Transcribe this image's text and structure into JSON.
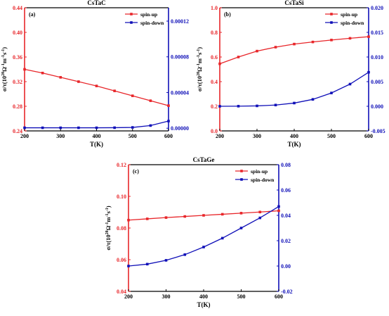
{
  "colors": {
    "spin_up": "#e8262a",
    "spin_down": "#1010b8",
    "frame": "#000000"
  },
  "chart_data": [
    {
      "type": "line",
      "title": "CsTaC",
      "panel_label": "(a)",
      "xlabel": "T(K)",
      "ylabel_main": "σ/τ(10",
      "ylabel_exp": "20",
      "ylabel_rest": "Ω",
      "ylabel_unit": "m",
      "ylabel_unit2": "s",
      "ylabel_sup": "-1",
      "ylabel_sup2": "-1",
      "ylabel_sup3": "-1",
      "x": [
        200,
        250,
        300,
        350,
        400,
        450,
        500,
        550,
        600
      ],
      "xlim": [
        200,
        600
      ],
      "xticks": [
        200,
        300,
        400,
        500,
        600
      ],
      "xtick_labels": [
        "200",
        "300",
        "400",
        "500",
        "600"
      ],
      "ylim_left": [
        0.24,
        0.44
      ],
      "yticks_left": [
        0.24,
        0.28,
        0.32,
        0.36,
        0.4,
        0.44
      ],
      "ytick_labels_left": [
        "0.24",
        "0.28",
        "0.32",
        "0.36",
        "0.40",
        "0.44"
      ],
      "ylim_right": [
        -3e-06,
        0.000135
      ],
      "yticks_right": [
        0,
        4e-05,
        8e-05,
        0.00012
      ],
      "ytick_labels_right": [
        "0.00000",
        "0.00004",
        "0.00008",
        "0.00012"
      ],
      "legend": [
        "spin-up",
        "spin-down"
      ],
      "legend_position": "top-right",
      "series": [
        {
          "name": "spin-up",
          "axis": "left",
          "values": [
            0.34,
            0.334,
            0.327,
            0.32,
            0.313,
            0.305,
            0.297,
            0.289,
            0.281
          ]
        },
        {
          "name": "spin-down",
          "axis": "right",
          "values": [
            5e-07,
            5e-07,
            5e-07,
            5e-07,
            5e-07,
            6e-07,
            9e-07,
            3e-06,
            8e-06
          ]
        }
      ]
    },
    {
      "type": "line",
      "title": "CsTaSi",
      "panel_label": "(b)",
      "xlabel": "T(K)",
      "x": [
        200,
        250,
        300,
        350,
        400,
        450,
        500,
        550,
        600
      ],
      "xlim": [
        200,
        600
      ],
      "xticks": [
        200,
        300,
        400,
        500,
        600
      ],
      "xtick_labels": [
        "200",
        "300",
        "400",
        "500",
        "600"
      ],
      "ylim_left": [
        0,
        1.0
      ],
      "yticks_left": [
        0,
        0.2,
        0.4,
        0.6,
        0.8,
        1.0
      ],
      "ytick_labels_left": [
        "0.0",
        "0.2",
        "0.4",
        "0.6",
        "0.8",
        "1.0"
      ],
      "ylim_right": [
        -0.005,
        0.02
      ],
      "yticks_right": [
        -0.005,
        0,
        0.005,
        0.01,
        0.015,
        0.02
      ],
      "ytick_labels_right": [
        "-0.005",
        "0.000",
        "0.005",
        "0.010",
        "0.015",
        "0.020"
      ],
      "legend": [
        "spin-up",
        "spin-down"
      ],
      "legend_position": "top-right",
      "series": [
        {
          "name": "spin-up",
          "axis": "left",
          "values": [
            0.545,
            0.6,
            0.648,
            0.68,
            0.705,
            0.722,
            0.738,
            0.752,
            0.765
          ]
        },
        {
          "name": "spin-down",
          "axis": "right",
          "values": [
            0.0,
            2e-05,
            8e-05,
            0.00025,
            0.00065,
            0.0014,
            0.0027,
            0.0045,
            0.0069
          ]
        }
      ]
    },
    {
      "type": "line",
      "title": "CsTaGe",
      "panel_label": "(c)",
      "xlabel": "T(K)",
      "x": [
        200,
        250,
        300,
        350,
        400,
        450,
        500,
        550,
        600
      ],
      "xlim": [
        200,
        600
      ],
      "xticks": [
        200,
        300,
        400,
        500,
        600
      ],
      "xtick_labels": [
        "200",
        "300",
        "400",
        "500",
        "600"
      ],
      "ylim_left": [
        0.04,
        0.12
      ],
      "yticks_left": [
        0.04,
        0.06,
        0.08,
        0.1,
        0.12
      ],
      "ytick_labels_left": [
        "0.04",
        "0.06",
        "0.08",
        "0.10",
        "0.12"
      ],
      "ylim_right": [
        -0.02,
        0.08
      ],
      "yticks_right": [
        -0.02,
        0.0,
        0.02,
        0.04,
        0.06,
        0.08
      ],
      "ytick_labels_right": [
        "-0.02",
        "0.00",
        "0.02",
        "0.04",
        "0.06",
        "0.08"
      ],
      "legend": [
        "spin-up",
        "spin-down"
      ],
      "legend_position": "top-right",
      "series": [
        {
          "name": "spin-up",
          "axis": "left",
          "values": [
            0.085,
            0.0858,
            0.0866,
            0.0873,
            0.088,
            0.0887,
            0.0894,
            0.0901,
            0.0909
          ]
        },
        {
          "name": "spin-down",
          "axis": "right",
          "values": [
            0.0,
            0.0015,
            0.0045,
            0.009,
            0.015,
            0.022,
            0.03,
            0.038,
            0.047
          ]
        }
      ]
    }
  ]
}
